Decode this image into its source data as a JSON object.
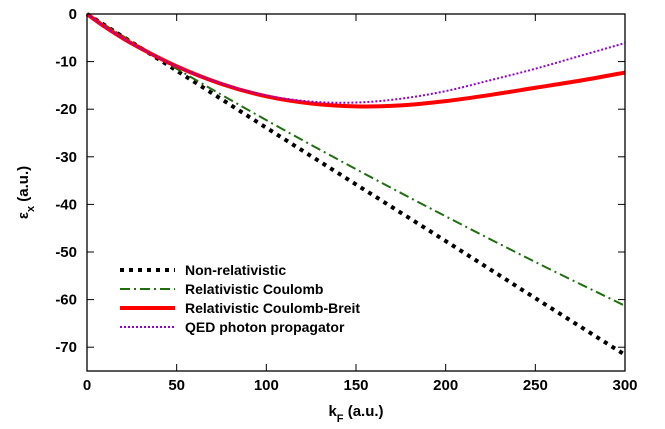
{
  "chart_data": {
    "type": "line",
    "xlabel": {
      "main": "k",
      "sub": "F",
      "rest": " (a.u.)"
    },
    "ylabel": {
      "main": "ε",
      "sub": "x",
      "rest": " (a.u.)"
    },
    "xlim": [
      0,
      300
    ],
    "ylim": [
      -75,
      0
    ],
    "xticks": [
      0,
      50,
      100,
      150,
      200,
      250,
      300
    ],
    "yticks": [
      0,
      -10,
      -20,
      -30,
      -40,
      -50,
      -60,
      -70
    ],
    "grid": false,
    "legend_position": "bottom-left",
    "series": [
      {
        "name": "Non-relativistic",
        "color": "#000000",
        "style": "dotted-thick",
        "x": [
          0,
          50,
          100,
          150,
          200,
          250,
          300
        ],
        "y": [
          0,
          -11.9,
          -23.9,
          -35.8,
          -47.7,
          -59.7,
          -71.6
        ]
      },
      {
        "name": "Relativistic Coulomb",
        "color": "#1f6f10",
        "style": "dash-dot",
        "x": [
          0,
          50,
          100,
          150,
          200,
          250,
          300
        ],
        "y": [
          0,
          -11.5,
          -22.3,
          -32.6,
          -42.5,
          -52.1,
          -61.3
        ]
      },
      {
        "name": "Relativistic Coulomb-Breit",
        "color": "#ff0000",
        "style": "solid-thick",
        "x": [
          0,
          10,
          25,
          50,
          75,
          100,
          125,
          150,
          175,
          200,
          225,
          250,
          275,
          300
        ],
        "y": [
          0,
          -2.7,
          -6.2,
          -11.0,
          -14.7,
          -17.3,
          -18.8,
          -19.4,
          -19.2,
          -18.3,
          -17.0,
          -15.5,
          -14.0,
          -12.3
        ]
      },
      {
        "name": "QED photon propagator",
        "color": "#9400d3",
        "style": "dotted-thin",
        "x": [
          0,
          10,
          25,
          50,
          75,
          100,
          125,
          150,
          175,
          200,
          225,
          250,
          275,
          300
        ],
        "y": [
          0,
          -2.7,
          -6.2,
          -11.0,
          -14.6,
          -17.1,
          -18.4,
          -18.6,
          -17.8,
          -16.2,
          -13.9,
          -11.5,
          -8.8,
          -6.1
        ]
      }
    ]
  }
}
